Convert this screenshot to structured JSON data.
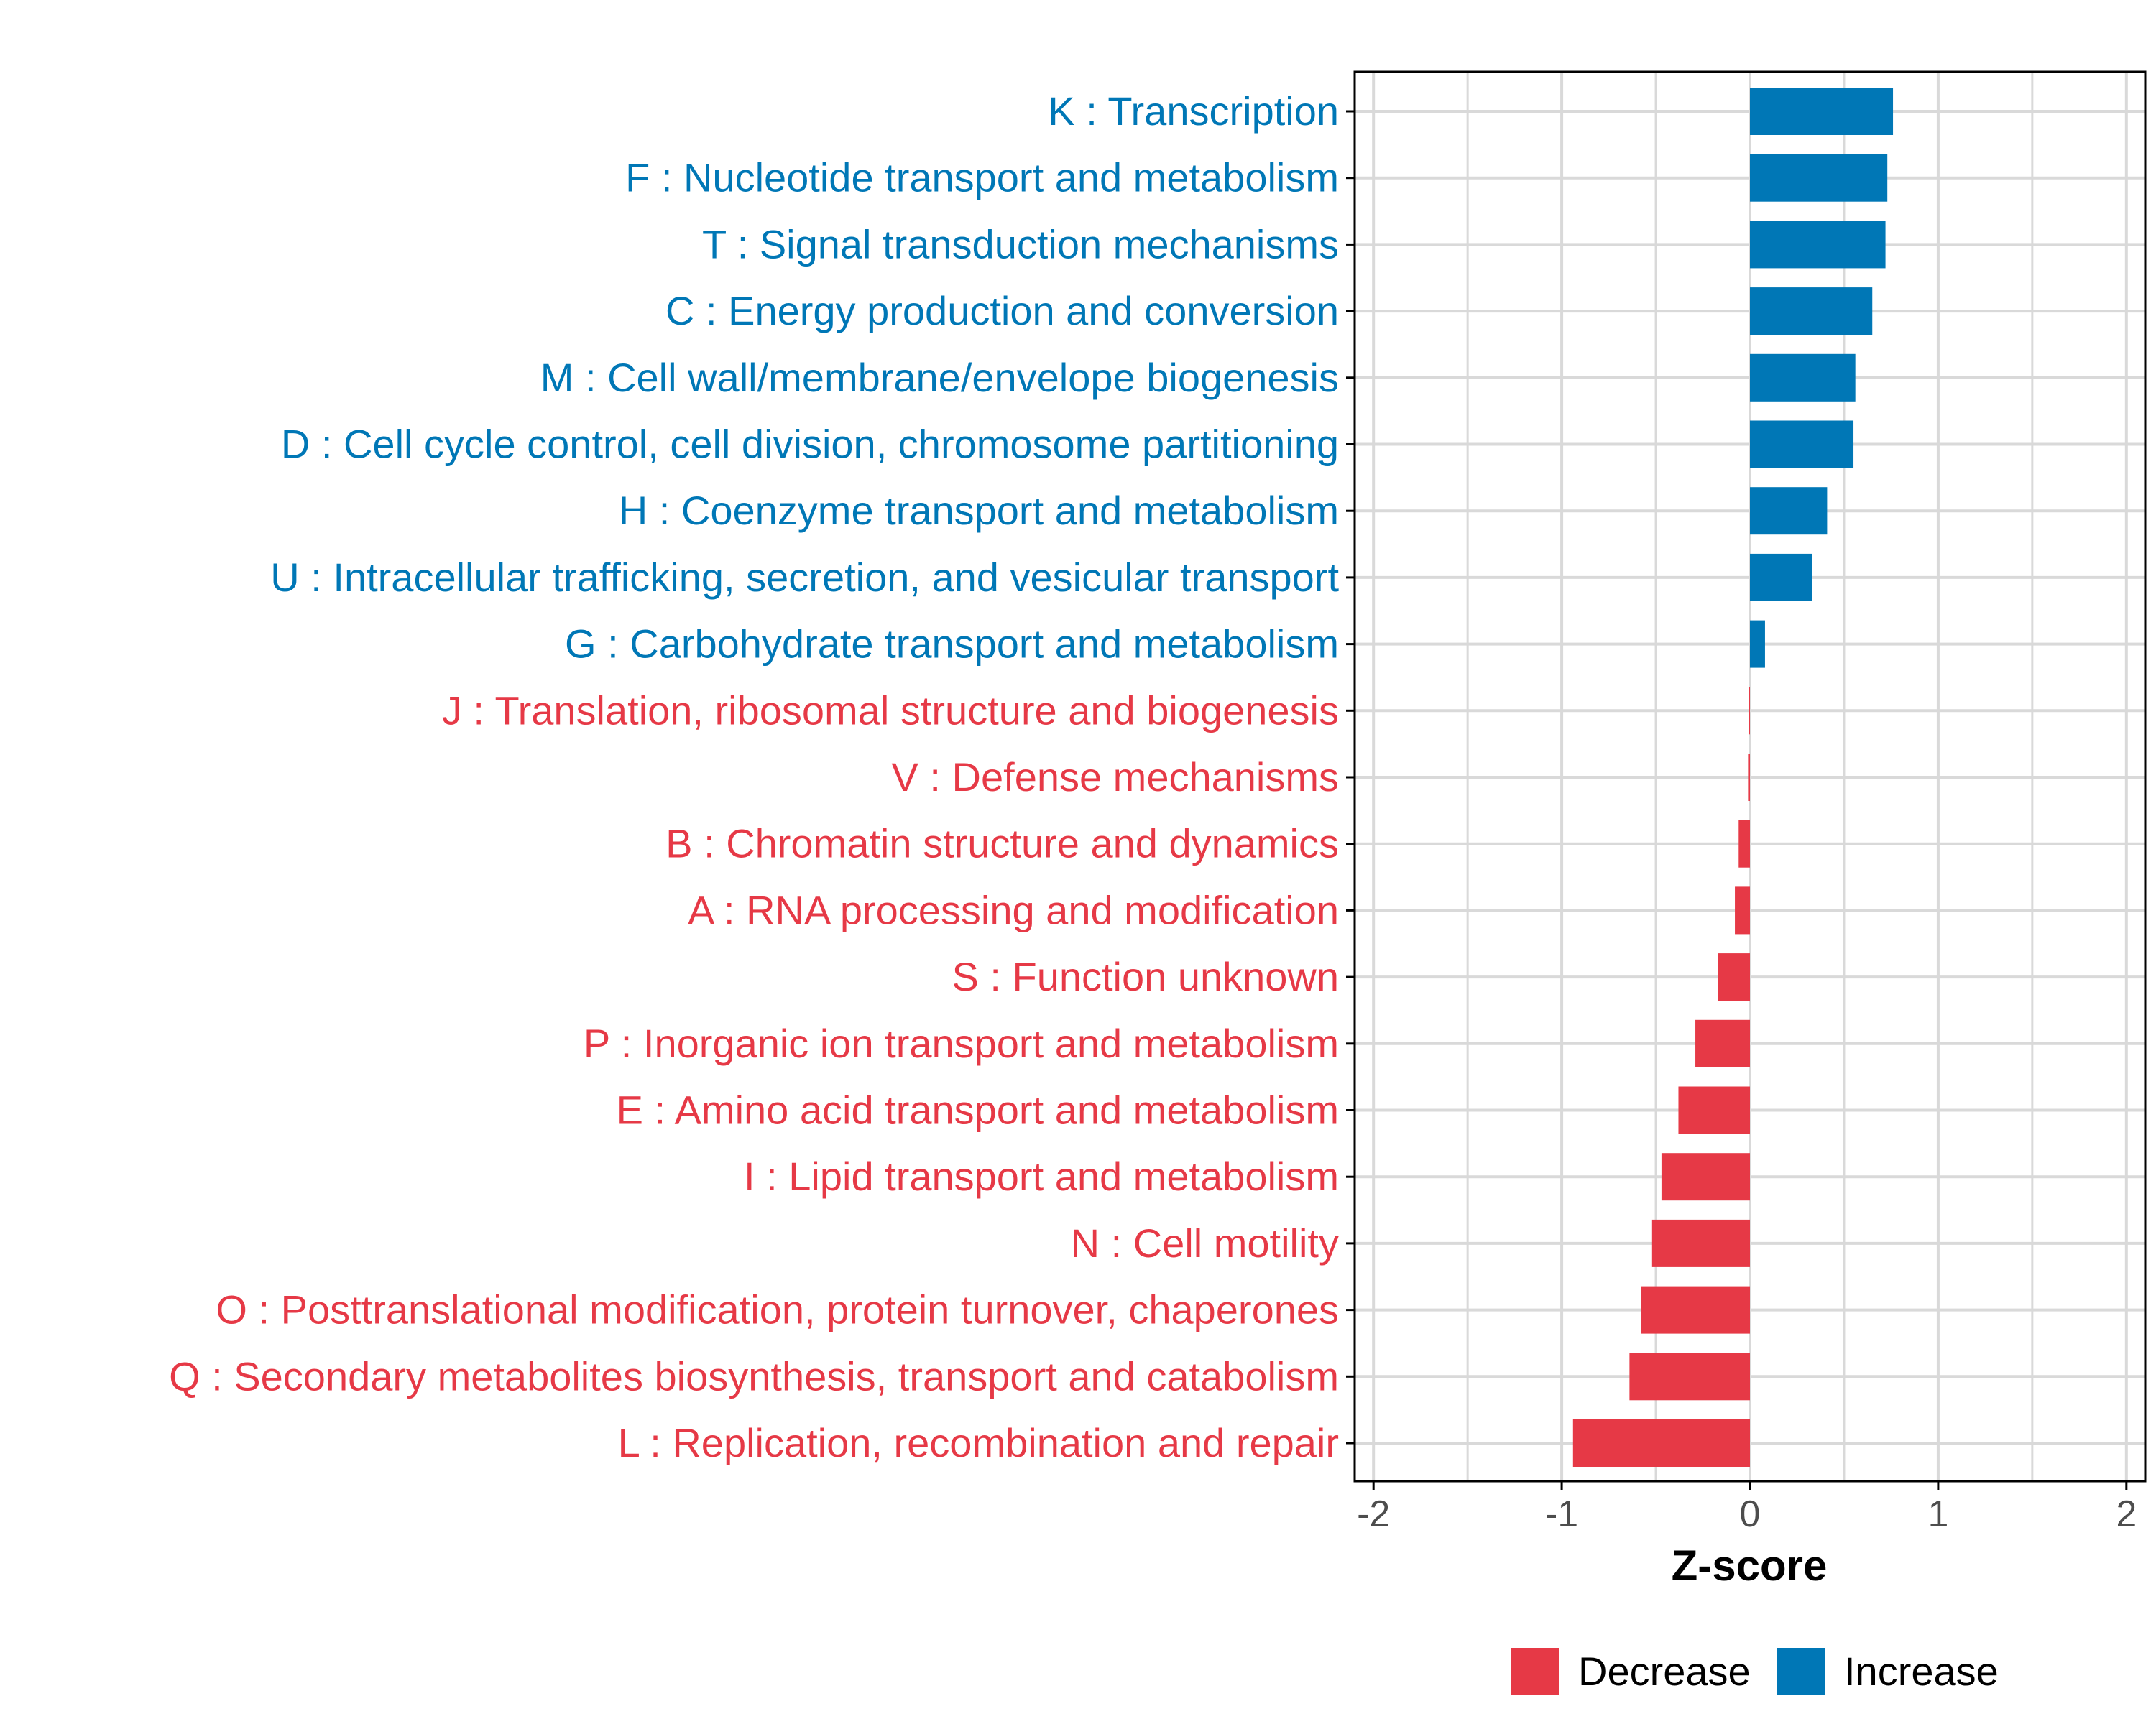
{
  "chart_data": {
    "type": "bar",
    "orientation": "horizontal",
    "title": "",
    "xlabel": "Z-score",
    "ylabel": "",
    "xlim": [
      -2.1,
      2.1
    ],
    "xticks": [
      "-2",
      "-1",
      "0",
      "1",
      "2"
    ],
    "grid": true,
    "legend_position": "bottom",
    "colors": {
      "Decrease": "#e63946",
      "Increase": "#0077b6",
      "grid": "#d9d9d9",
      "axis": "#000000",
      "tick_text": "#4d4d4d"
    },
    "legend": [
      "Decrease",
      "Increase"
    ],
    "categories": [
      "K : Transcription",
      "F : Nucleotide transport and metabolism",
      "T : Signal transduction mechanisms",
      "C : Energy production and conversion",
      "M : Cell wall/membrane/envelope biogenesis",
      "D : Cell cycle control, cell division, chromosome partitioning",
      "H : Coenzyme transport and metabolism",
      "U : Intracellular trafficking, secretion, and vesicular transport",
      "G : Carbohydrate transport and metabolism",
      "J : Translation, ribosomal structure and biogenesis",
      "V : Defense mechanisms",
      "B : Chromatin structure and dynamics",
      "A : RNA processing and modification",
      "S : Function unknown",
      "P : Inorganic ion transport and metabolism",
      "E : Amino acid transport and metabolism",
      "I : Lipid transport and metabolism",
      "N : Cell motility",
      "O : Posttranslational modification, protein turnover, chaperones",
      "Q : Secondary metabolites biosynthesis, transport and catabolism",
      "L : Replication, recombination and repair"
    ],
    "values": [
      0.76,
      0.73,
      0.72,
      0.65,
      0.56,
      0.55,
      0.41,
      0.33,
      0.08,
      -0.005,
      -0.01,
      -0.06,
      -0.08,
      -0.17,
      -0.29,
      -0.38,
      -0.47,
      -0.52,
      -0.58,
      -0.64,
      -0.94
    ],
    "groups": [
      "Increase",
      "Increase",
      "Increase",
      "Increase",
      "Increase",
      "Increase",
      "Increase",
      "Increase",
      "Increase",
      "Decrease",
      "Decrease",
      "Decrease",
      "Decrease",
      "Decrease",
      "Decrease",
      "Decrease",
      "Decrease",
      "Decrease",
      "Decrease",
      "Decrease",
      "Decrease"
    ]
  }
}
